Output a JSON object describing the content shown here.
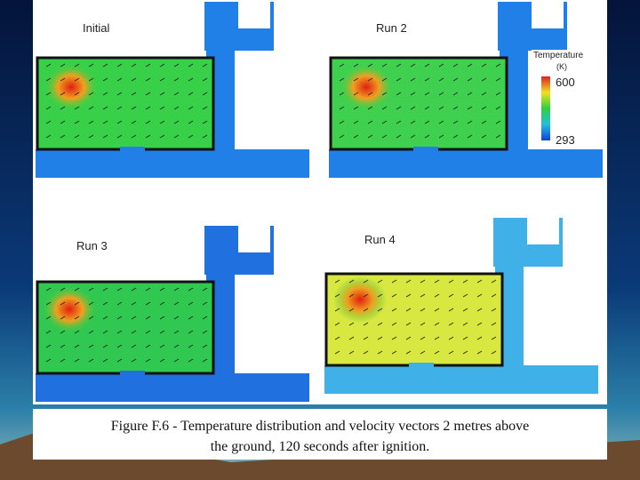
{
  "figure": {
    "panels": [
      {
        "label": "Initial"
      },
      {
        "label": "Run 2"
      },
      {
        "label": "Run 3"
      },
      {
        "label": "Run 4"
      }
    ],
    "colorbar": {
      "title": "Temperature",
      "unit": "(K)",
      "max": 600,
      "min": 293
    },
    "caption": {
      "line1": "Figure F.6 - Temperature distribution and velocity vectors 2 metres above",
      "line2": "the ground, 120 seconds after ignition."
    }
  }
}
